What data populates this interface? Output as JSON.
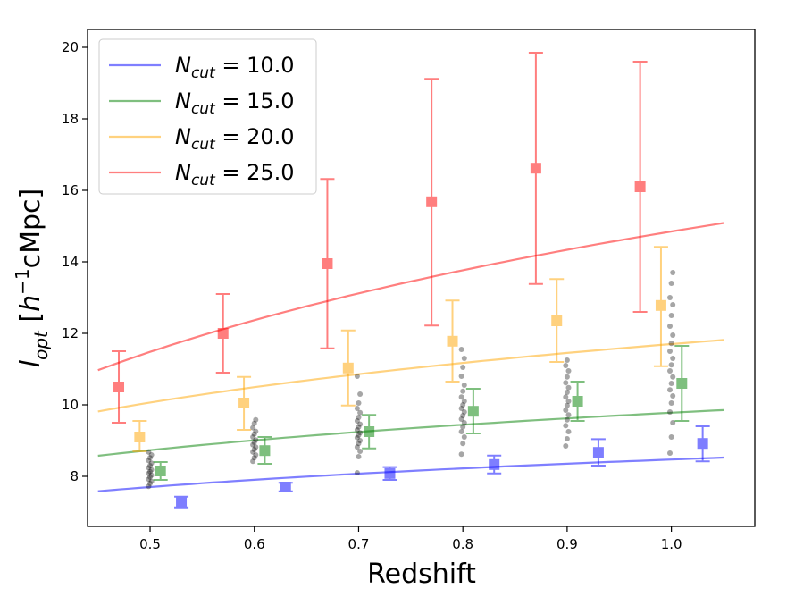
{
  "chart_data": {
    "type": "scatter",
    "title": "",
    "xlabel": "Redshift",
    "ylabel": "l_opt [h^-1 cMpc]",
    "xlim": [
      0.44,
      1.08
    ],
    "ylim": [
      6.6,
      20.5
    ],
    "x_ticks": [
      "0.5",
      "0.6",
      "0.7",
      "0.8",
      "0.9",
      "1.0"
    ],
    "y_ticks": [
      "8",
      "10",
      "12",
      "14",
      "16",
      "18",
      "20"
    ],
    "grid": false,
    "legend_position": "top-left",
    "series": [
      {
        "name": "N_cut = 10.0",
        "label_main": "N",
        "label_sub": "cut",
        "label_value": " = 10.0",
        "color": "#0000ff",
        "points": [
          {
            "x": 0.53,
            "y": 7.28,
            "lo": 7.13,
            "hi": 7.43
          },
          {
            "x": 0.63,
            "y": 7.7,
            "lo": 7.58,
            "hi": 7.82
          },
          {
            "x": 0.73,
            "y": 8.08,
            "lo": 7.9,
            "hi": 8.26
          },
          {
            "x": 0.83,
            "y": 8.33,
            "lo": 8.08,
            "hi": 8.58
          },
          {
            "x": 0.93,
            "y": 8.67,
            "lo": 8.3,
            "hi": 9.04
          },
          {
            "x": 1.03,
            "y": 8.92,
            "lo": 8.42,
            "hi": 9.4
          }
        ],
        "fit": {
          "a": 8.47,
          "b": 1.11
        }
      },
      {
        "name": "N_cut = 15.0",
        "label_main": "N",
        "label_sub": "cut",
        "label_value": " = 15.0",
        "color": "#008000",
        "points": [
          {
            "x": 0.51,
            "y": 8.15,
            "lo": 7.9,
            "hi": 8.4
          },
          {
            "x": 0.61,
            "y": 8.72,
            "lo": 8.35,
            "hi": 9.1
          },
          {
            "x": 0.71,
            "y": 9.25,
            "lo": 8.78,
            "hi": 9.72
          },
          {
            "x": 0.81,
            "y": 9.82,
            "lo": 9.2,
            "hi": 10.45
          },
          {
            "x": 0.91,
            "y": 10.1,
            "lo": 9.55,
            "hi": 10.65
          },
          {
            "x": 1.01,
            "y": 10.6,
            "lo": 9.55,
            "hi": 11.65
          }
        ],
        "fit": {
          "a": 9.78,
          "b": 1.51
        }
      },
      {
        "name": "N_cut = 20.0",
        "label_main": "N",
        "label_sub": "cut",
        "label_value": " = 20.0",
        "color": "#ffa500",
        "points": [
          {
            "x": 0.49,
            "y": 9.1,
            "lo": 8.7,
            "hi": 9.55
          },
          {
            "x": 0.59,
            "y": 10.05,
            "lo": 9.3,
            "hi": 10.78
          },
          {
            "x": 0.69,
            "y": 11.03,
            "lo": 9.98,
            "hi": 12.08
          },
          {
            "x": 0.79,
            "y": 11.78,
            "lo": 10.65,
            "hi": 12.92
          },
          {
            "x": 0.89,
            "y": 12.35,
            "lo": 11.2,
            "hi": 13.52
          },
          {
            "x": 0.99,
            "y": 12.78,
            "lo": 11.08,
            "hi": 14.42
          }
        ],
        "fit": {
          "a": 11.7,
          "b": 2.36
        }
      },
      {
        "name": "N_cut = 25.0",
        "label_main": "N",
        "label_sub": "cut",
        "label_value": " = 25.0",
        "color": "#ff0000",
        "points": [
          {
            "x": 0.47,
            "y": 10.5,
            "lo": 9.5,
            "hi": 11.5
          },
          {
            "x": 0.57,
            "y": 12.0,
            "lo": 10.9,
            "hi": 13.1
          },
          {
            "x": 0.67,
            "y": 13.95,
            "lo": 11.58,
            "hi": 16.32
          },
          {
            "x": 0.77,
            "y": 15.68,
            "lo": 12.22,
            "hi": 19.12
          },
          {
            "x": 0.87,
            "y": 16.62,
            "lo": 13.38,
            "hi": 19.85
          },
          {
            "x": 0.97,
            "y": 16.1,
            "lo": 12.6,
            "hi": 19.6
          }
        ],
        "fit": {
          "a": 14.85,
          "b": 4.86
        }
      }
    ],
    "scatter_samples": [
      {
        "x": 0.5,
        "y": [
          7.72,
          7.8,
          7.86,
          7.92,
          7.98,
          8.03,
          8.08,
          8.13,
          8.18,
          8.24,
          8.3,
          8.37,
          8.44,
          8.52,
          8.6,
          8.68
        ]
      },
      {
        "x": 0.6,
        "y": [
          8.42,
          8.52,
          8.6,
          8.68,
          8.75,
          8.82,
          8.88,
          8.95,
          9.02,
          9.1,
          9.18,
          9.26,
          9.36,
          9.48,
          9.58
        ]
      },
      {
        "x": 0.7,
        "y": [
          8.1,
          8.55,
          8.7,
          8.82,
          8.92,
          9.0,
          9.08,
          9.15,
          9.22,
          9.3,
          9.38,
          9.46,
          9.55,
          9.65,
          9.78,
          9.9,
          10.05,
          10.3,
          10.8
        ]
      },
      {
        "x": 0.8,
        "y": [
          8.62,
          8.92,
          9.1,
          9.25,
          9.38,
          9.5,
          9.6,
          9.7,
          9.8,
          9.9,
          10.0,
          10.1,
          10.22,
          10.38,
          10.55,
          10.8,
          11.05,
          11.3,
          11.55
        ]
      },
      {
        "x": 0.9,
        "y": [
          8.85,
          9.05,
          9.25,
          9.42,
          9.58,
          9.72,
          9.85,
          9.98,
          10.1,
          10.22,
          10.35,
          10.48,
          10.62,
          10.78,
          10.95,
          11.1,
          11.25
        ]
      },
      {
        "x": 1.0,
        "y": [
          8.65,
          9.1,
          9.5,
          9.8,
          10.05,
          10.25,
          10.42,
          10.6,
          10.78,
          10.95,
          11.12,
          11.3,
          11.5,
          11.72,
          11.95,
          12.2,
          12.5,
          12.8,
          13.0,
          13.4,
          13.7
        ]
      }
    ],
    "scatter_color": "#000000"
  }
}
